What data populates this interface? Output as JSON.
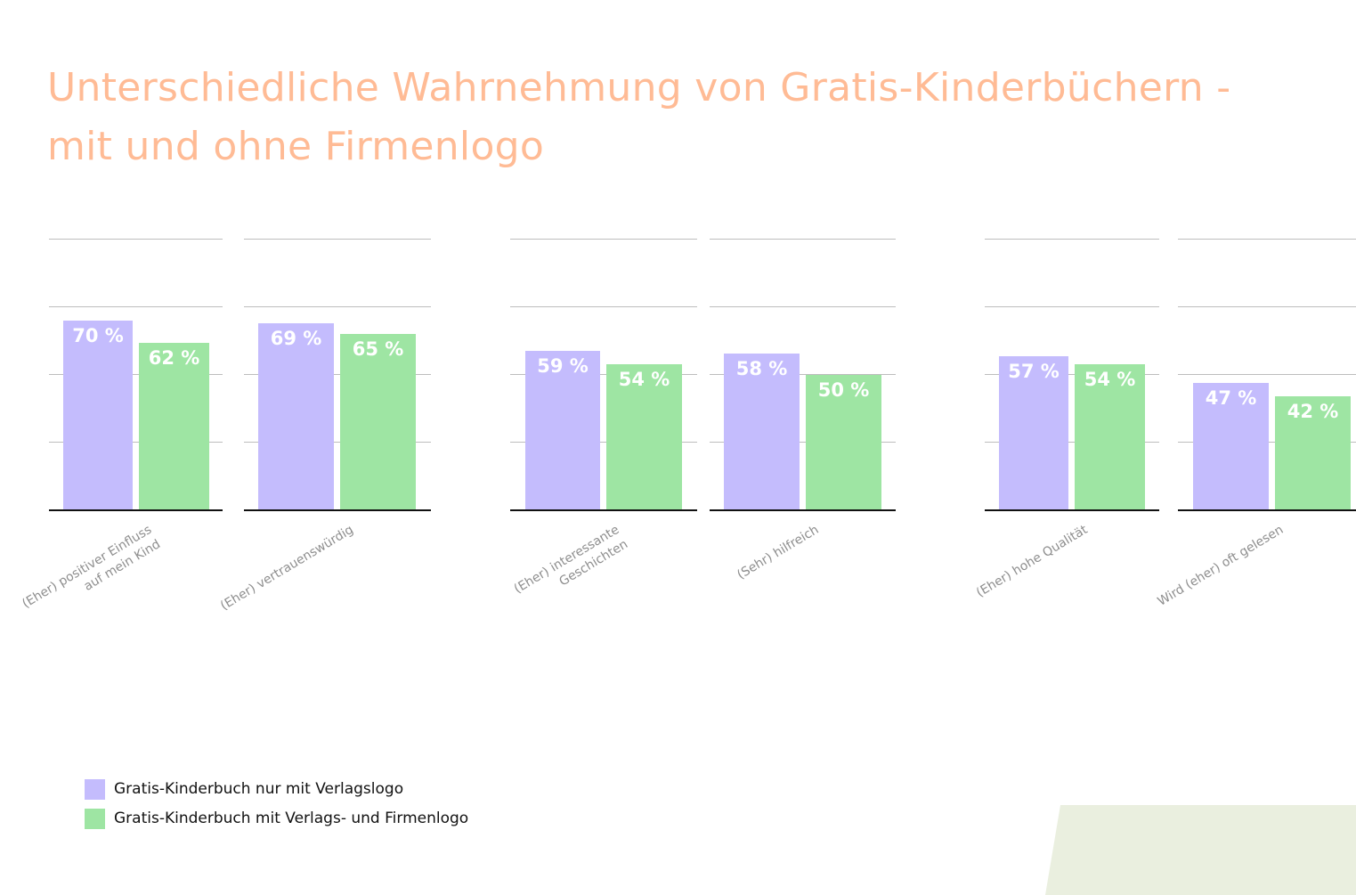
{
  "title": {
    "line1": "Unterschiedliche Wahrnehmung von Gratis-Kinderbüchern -",
    "line2": "mit und ohne Firmenlogo"
  },
  "colors": {
    "title": "#ffbb95",
    "series1": "#c4bcfd",
    "series2": "#9ee5a3",
    "grid": "#bdbdbd",
    "axis": "#111111",
    "category_label": "#8e8e8e",
    "decoration": "#eaefdf"
  },
  "chart_data": {
    "type": "bar",
    "title": "Unterschiedliche Wahrnehmung von Gratis-Kinderbüchern - mit und ohne Firmenlogo",
    "xlabel": "",
    "ylabel": "",
    "ylim": [
      0,
      100
    ],
    "grid": true,
    "gridlines": [
      25,
      50,
      75,
      100
    ],
    "legend_position": "bottom-left",
    "value_suffix": " %",
    "categories": [
      {
        "lines": [
          "(Eher) positiver Einfluss",
          "auf mein Kind"
        ]
      },
      {
        "lines": [
          "(Eher) vertrauenswürdig"
        ]
      },
      {
        "lines": [
          "(Eher) interessante",
          "Geschichten"
        ]
      },
      {
        "lines": [
          "(Sehr) hilfreich"
        ]
      },
      {
        "lines": [
          "(Eher) hohe Qualität"
        ]
      },
      {
        "lines": [
          "Wird (eher) oft gelesen"
        ]
      }
    ],
    "series": [
      {
        "name": "Gratis-Kinderbuch nur mit Verlagslogo",
        "color": "#c4bcfd",
        "values": [
          70,
          69,
          59,
          58,
          57,
          47
        ],
        "labels": [
          "70 %",
          "69 %",
          "59 %",
          "58 %",
          "57 %",
          "47 %"
        ]
      },
      {
        "name": "Gratis-Kinderbuch mit Verlags- und Firmenlogo",
        "color": "#9ee5a3",
        "values": [
          62,
          65,
          54,
          50,
          54,
          42
        ],
        "labels": [
          "62 %",
          "65 %",
          "54 %",
          "50 %",
          "54 %",
          "42 %"
        ]
      }
    ]
  },
  "legend": {
    "items": [
      {
        "label": "Gratis-Kinderbuch nur mit Verlagslogo",
        "color": "#c4bcfd"
      },
      {
        "label": "Gratis-Kinderbuch mit Verlags- und Firmenlogo",
        "color": "#9ee5a3"
      }
    ]
  }
}
